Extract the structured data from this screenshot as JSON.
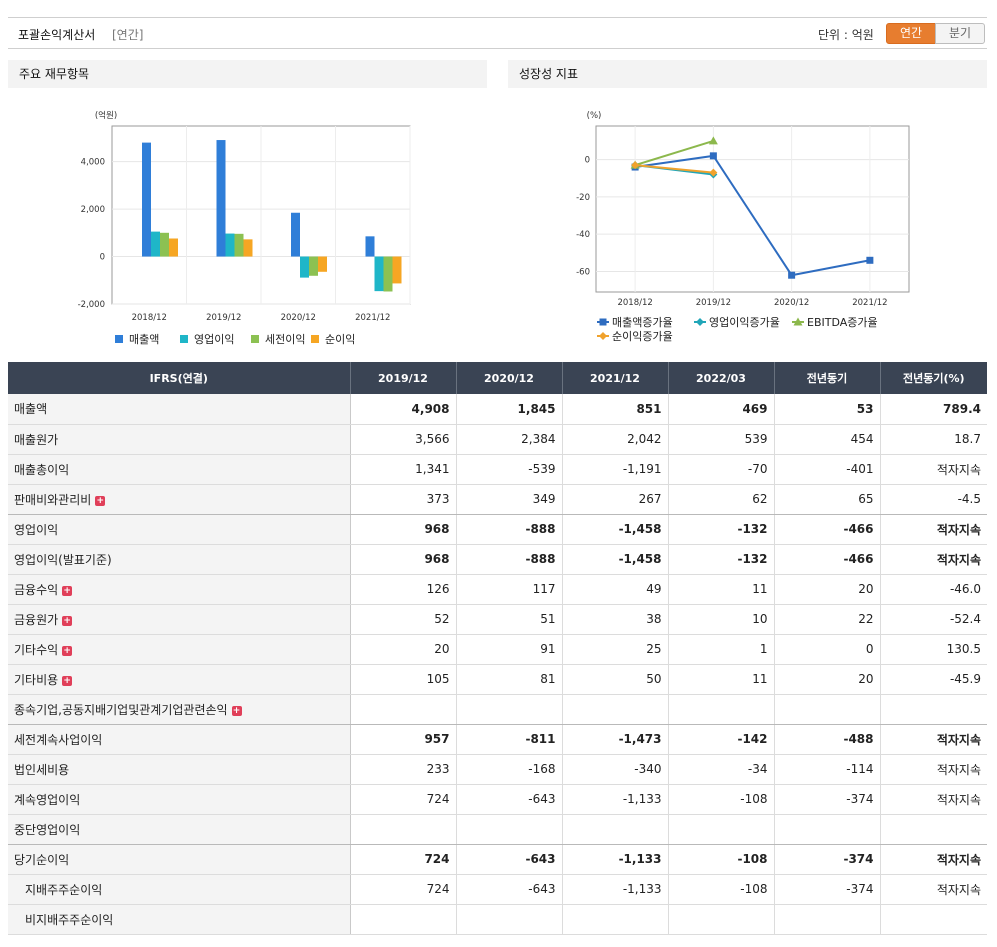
{
  "header": {
    "title": "포괄손익계산서",
    "subtitle": "[연간]",
    "unit": "단위 : 억원",
    "tab_annual": "연간",
    "tab_quarter": "분기"
  },
  "left_panel": {
    "title": "주요 재무항목"
  },
  "right_panel": {
    "title": "성장성 지표"
  },
  "colors": {
    "revenue": "#2f7ed8",
    "operating": "#1fb6c8",
    "pretax": "#8cc152",
    "net": "#f6a623",
    "growth_revenue": "#2e6cc0",
    "growth_operating": "#21a6b8",
    "growth_ebitda": "#8cb84c",
    "growth_net": "#f0a22d",
    "negative_text": "#e2141c",
    "header_bg": "#3a4454",
    "tab_active": "#e77d2f"
  },
  "chart_data": [
    {
      "type": "bar",
      "ylabel": "(억원)",
      "categories": [
        "2018/12",
        "2019/12",
        "2020/12",
        "2021/12"
      ],
      "series": [
        {
          "name": "매출액",
          "values": [
            4800,
            4908,
            1845,
            851
          ]
        },
        {
          "name": "영업이익",
          "values": [
            1050,
            968,
            -888,
            -1458
          ]
        },
        {
          "name": "세전이익",
          "values": [
            1000,
            957,
            -811,
            -1473
          ]
        },
        {
          "name": "순이익",
          "values": [
            760,
            724,
            -643,
            -1133
          ]
        }
      ],
      "yticks": [
        "4,000",
        "2,000",
        "0",
        "-2,000"
      ],
      "ytick_values": [
        4000,
        2000,
        0,
        -2000
      ],
      "ylim": [
        -2000,
        5500
      ],
      "legend": "bottom",
      "grid": true
    },
    {
      "type": "line",
      "ylabel": "(%)",
      "categories": [
        "2018/12",
        "2019/12",
        "2020/12",
        "2021/12"
      ],
      "series": [
        {
          "name": "매출액증가율",
          "values": [
            -4,
            2,
            -62,
            -54
          ],
          "marker": "square"
        },
        {
          "name": "영업이익증가율",
          "values": [
            -3,
            -8,
            null,
            null
          ],
          "marker": "diamond"
        },
        {
          "name": "EBITDA증가율",
          "values": [
            -3,
            10,
            null,
            null
          ],
          "marker": "triangle"
        },
        {
          "name": "순이익증가율",
          "values": [
            -3,
            -7,
            null,
            null
          ],
          "marker": "diamond"
        }
      ],
      "yticks": [
        "0",
        "-20",
        "-40",
        "-60"
      ],
      "ytick_values": [
        0,
        -20,
        -40,
        -60
      ],
      "ylim": [
        -71,
        18
      ],
      "legend": "bottom",
      "grid": true
    }
  ],
  "table": {
    "columns": [
      "IFRS(연결)",
      "2019/12",
      "2020/12",
      "2021/12",
      "2022/03",
      "전년동기",
      "전년동기(%)"
    ],
    "rows": [
      {
        "label": "매출액",
        "expand": false,
        "bold": true,
        "indent": false,
        "values": [
          "4,908",
          "1,845",
          "851",
          "469",
          "53",
          "789.4"
        ]
      },
      {
        "label": "매출원가",
        "expand": false,
        "bold": false,
        "indent": false,
        "values": [
          "3,566",
          "2,384",
          "2,042",
          "539",
          "454",
          "18.7"
        ]
      },
      {
        "label": "매출총이익",
        "expand": false,
        "bold": false,
        "indent": false,
        "values": [
          "1,341",
          "-539",
          "-1,191",
          "-70",
          "-401",
          "적자지속"
        ]
      },
      {
        "label": "판매비와관리비",
        "expand": true,
        "bold": false,
        "indent": false,
        "sep": true,
        "values": [
          "373",
          "349",
          "267",
          "62",
          "65",
          "-4.5"
        ]
      },
      {
        "label": "영업이익",
        "expand": false,
        "bold": true,
        "indent": false,
        "values": [
          "968",
          "-888",
          "-1,458",
          "-132",
          "-466",
          "적자지속"
        ]
      },
      {
        "label": "영업이익(발표기준)",
        "expand": false,
        "bold": true,
        "indent": false,
        "values": [
          "968",
          "-888",
          "-1,458",
          "-132",
          "-466",
          "적자지속"
        ]
      },
      {
        "label": "금융수익",
        "expand": true,
        "bold": false,
        "indent": false,
        "values": [
          "126",
          "117",
          "49",
          "11",
          "20",
          "-46.0"
        ]
      },
      {
        "label": "금융원가",
        "expand": true,
        "bold": false,
        "indent": false,
        "values": [
          "52",
          "51",
          "38",
          "10",
          "22",
          "-52.4"
        ]
      },
      {
        "label": "기타수익",
        "expand": true,
        "bold": false,
        "indent": false,
        "values": [
          "20",
          "91",
          "25",
          "1",
          "0",
          "130.5"
        ]
      },
      {
        "label": "기타비용",
        "expand": true,
        "bold": false,
        "indent": false,
        "values": [
          "105",
          "81",
          "50",
          "11",
          "20",
          "-45.9"
        ]
      },
      {
        "label": "종속기업,공동지배기업및관계기업관련손익",
        "expand": true,
        "bold": false,
        "indent": false,
        "sep": true,
        "values": [
          "",
          "",
          "",
          "",
          "",
          ""
        ]
      },
      {
        "label": "세전계속사업이익",
        "expand": false,
        "bold": true,
        "indent": false,
        "values": [
          "957",
          "-811",
          "-1,473",
          "-142",
          "-488",
          "적자지속"
        ]
      },
      {
        "label": "법인세비용",
        "expand": false,
        "bold": false,
        "indent": false,
        "values": [
          "233",
          "-168",
          "-340",
          "-34",
          "-114",
          "적자지속"
        ]
      },
      {
        "label": "계속영업이익",
        "expand": false,
        "bold": false,
        "indent": false,
        "values": [
          "724",
          "-643",
          "-1,133",
          "-108",
          "-374",
          "적자지속"
        ]
      },
      {
        "label": "중단영업이익",
        "expand": false,
        "bold": false,
        "indent": false,
        "sep": true,
        "values": [
          "",
          "",
          "",
          "",
          "",
          ""
        ]
      },
      {
        "label": "당기순이익",
        "expand": false,
        "bold": true,
        "indent": false,
        "values": [
          "724",
          "-643",
          "-1,133",
          "-108",
          "-374",
          "적자지속"
        ]
      },
      {
        "label": "지배주주순이익",
        "expand": false,
        "bold": false,
        "indent": true,
        "values": [
          "724",
          "-643",
          "-1,133",
          "-108",
          "-374",
          "적자지속"
        ]
      },
      {
        "label": "비지배주주순이익",
        "expand": false,
        "bold": false,
        "indent": true,
        "values": [
          "",
          "",
          "",
          "",
          "",
          ""
        ]
      }
    ]
  }
}
